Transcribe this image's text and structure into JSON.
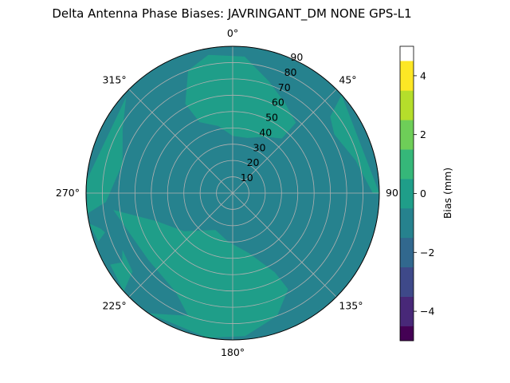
{
  "chart_data": {
    "type": "heatmap",
    "projection": "polar",
    "title": "Delta Antenna Phase Biases: JAVRINGANT_DM   NONE GPS-L1",
    "theta_zero": "top",
    "theta_direction": "clockwise",
    "theta_ticks": [
      "0°",
      "45°",
      "90",
      "135°",
      "180°",
      "225°",
      "270°",
      "315°"
    ],
    "r_ticks": [
      "10",
      "20",
      "30",
      "40",
      "50",
      "60",
      "70",
      "80",
      "90"
    ],
    "r_lim": [
      0,
      90
    ],
    "grid": true,
    "colorbar": {
      "label": "Bias (mm)",
      "ticks": [
        "−4",
        "−2",
        "0",
        "2",
        "4"
      ],
      "range": [
        -5,
        5
      ],
      "levels": [
        -5,
        -4.5,
        -3.5,
        -2.5,
        -1.5,
        -0.5,
        0.5,
        1.5,
        2.5,
        3.5,
        4.5,
        5
      ],
      "colors": [
        "#440154",
        "#482878",
        "#3e4989",
        "#31688e",
        "#26828e",
        "#1f9e89",
        "#35b779",
        "#6ece58",
        "#b5de2b",
        "#fde725"
      ]
    },
    "background_level_color": "#26828e",
    "regions": [
      {
        "name": "positive-lobe-north",
        "value": 0.6,
        "color": "#1f9e89",
        "polygon": [
          [
            -25,
            48
          ],
          [
            -12,
            42
          ],
          [
            0,
            35
          ],
          [
            15,
            35
          ],
          [
            30,
            40
          ],
          [
            42,
            45
          ],
          [
            42,
            58
          ],
          [
            30,
            64
          ],
          [
            18,
            72
          ],
          [
            5,
            84
          ],
          [
            -10,
            86
          ],
          [
            -20,
            80
          ],
          [
            -28,
            62
          ]
        ]
      },
      {
        "name": "positive-lobe-east",
        "value": 0.6,
        "color": "#1f9e89",
        "polygon": [
          [
            48,
            90
          ],
          [
            52,
            76
          ],
          [
            60,
            72
          ],
          [
            75,
            78
          ],
          [
            90,
            86
          ],
          [
            90,
            90
          ]
        ]
      },
      {
        "name": "positive-lobe-west",
        "value": 0.6,
        "color": "#1f9e89",
        "polygon": [
          [
            262,
            90
          ],
          [
            266,
            78
          ],
          [
            285,
            70
          ],
          [
            300,
            78
          ],
          [
            312,
            88
          ],
          [
            275,
            90
          ]
        ]
      },
      {
        "name": "positive-lobe-south",
        "value": 0.6,
        "color": "#1f9e89",
        "polygon": [
          [
            152,
            55
          ],
          [
            165,
            38
          ],
          [
            185,
            30
          ],
          [
            205,
            25
          ],
          [
            232,
            38
          ],
          [
            250,
            50
          ],
          [
            262,
            74
          ],
          [
            232,
            66
          ],
          [
            210,
            70
          ],
          [
            200,
            80
          ],
          [
            215,
            90
          ],
          [
            190,
            90
          ],
          [
            175,
            88
          ],
          [
            160,
            80
          ],
          [
            150,
            68
          ]
        ]
      },
      {
        "name": "positive-lobe-southwest",
        "value": 0.6,
        "color": "#1f9e89",
        "polygon": [
          [
            228,
            90
          ],
          [
            232,
            78
          ],
          [
            245,
            76
          ],
          [
            255,
            84
          ],
          [
            258,
            90
          ]
        ]
      },
      {
        "name": "negative-patch-southwest",
        "value": -0.4,
        "color": "#26828e",
        "polygon": [
          [
            238,
            80
          ],
          [
            246,
            74
          ],
          [
            254,
            80
          ],
          [
            250,
            88
          ],
          [
            240,
            88
          ]
        ]
      }
    ]
  }
}
